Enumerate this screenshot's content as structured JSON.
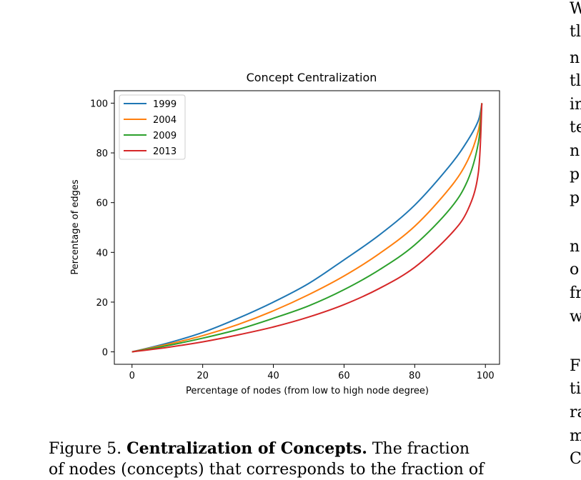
{
  "chart_data": {
    "type": "line",
    "title": "Concept Centralization",
    "xlabel": "Percentage of nodes (from low to high node degree)",
    "ylabel": "Percentage of edges",
    "xlim": [
      -5,
      104
    ],
    "ylim": [
      -5,
      105
    ],
    "xticks": [
      0,
      20,
      40,
      60,
      80,
      100
    ],
    "yticks": [
      0,
      20,
      40,
      60,
      80,
      100
    ],
    "grid": false,
    "legend_position": "top-left",
    "x": [
      0,
      10,
      20,
      30,
      40,
      50,
      60,
      70,
      80,
      90,
      95,
      98,
      99
    ],
    "series": [
      {
        "name": "1999",
        "color": "#1f77b4",
        "values": [
          0,
          3.5,
          7.8,
          13.5,
          20.0,
          27.5,
          37.0,
          47.0,
          59.0,
          75.0,
          85.0,
          93.0,
          100
        ]
      },
      {
        "name": "2004",
        "color": "#ff7f0e",
        "values": [
          0,
          3.0,
          6.5,
          11.0,
          16.5,
          23.0,
          30.5,
          39.5,
          50.5,
          66.0,
          77.0,
          89.0,
          100
        ]
      },
      {
        "name": "2009",
        "color": "#2ca02c",
        "values": [
          0,
          2.5,
          5.5,
          9.0,
          13.5,
          18.5,
          25.0,
          33.0,
          43.0,
          57.5,
          69.0,
          84.0,
          100
        ]
      },
      {
        "name": "2013",
        "color": "#d62728",
        "values": [
          0,
          1.8,
          4.0,
          6.8,
          10.0,
          14.0,
          19.0,
          25.5,
          34.0,
          47.0,
          57.0,
          72.0,
          100
        ]
      }
    ]
  },
  "caption": {
    "line1_prefix": "Figure 5.",
    "line1_bold": "Centralization of Concepts.",
    "line1_suffix": "The fraction",
    "line2": "of nodes (concepts) that corresponds to the fraction of"
  },
  "side_text": [
    "W",
    "tl",
    "n",
    "tl",
    "in",
    "te",
    "n",
    "p",
    "p",
    "n",
    "o",
    "fr",
    "w",
    "F",
    "ti",
    "ra",
    "m",
    "C"
  ]
}
